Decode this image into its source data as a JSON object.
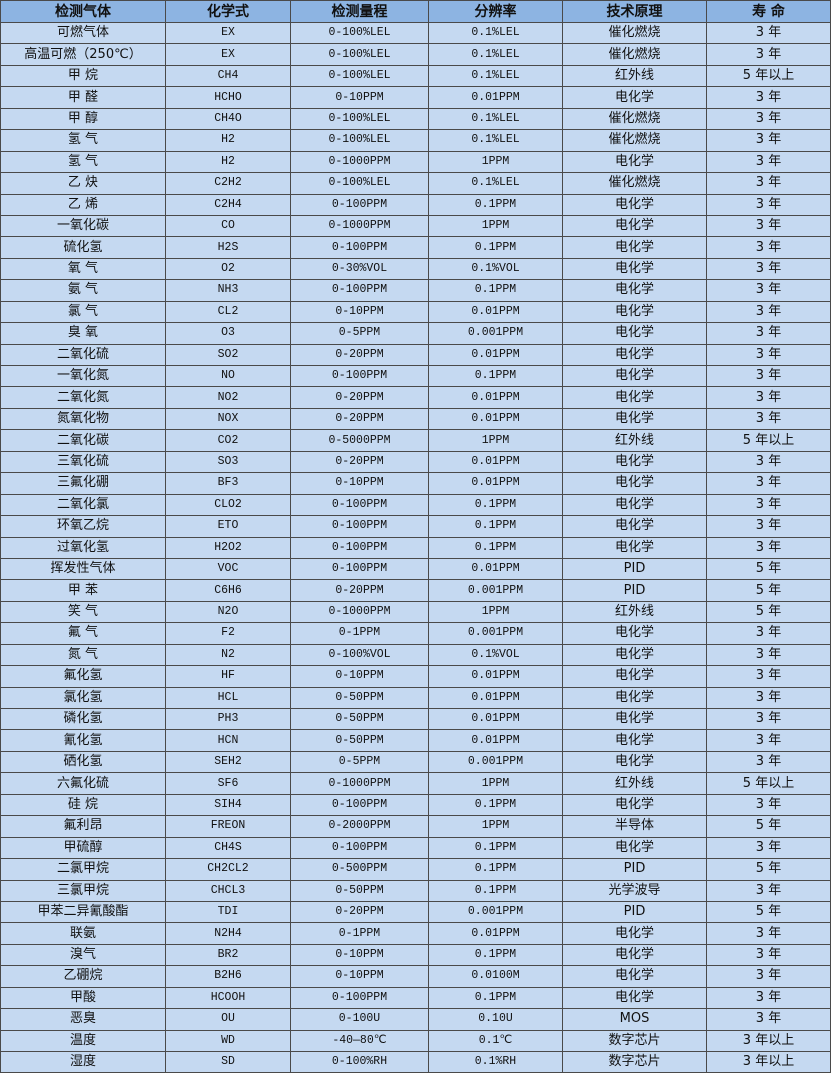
{
  "colors": {
    "header_bg": "#8DB4E2",
    "row_bg": "#C5D9F1",
    "border": "#4a4a4a"
  },
  "headers": [
    "检测气体",
    "化学式",
    "检测量程",
    "分辨率",
    "技术原理",
    "寿 命"
  ],
  "rows": [
    [
      "可燃气体",
      "EX",
      "0-100%LEL",
      "0.1%LEL",
      "催化燃烧",
      "3 年"
    ],
    [
      "高温可燃（250℃）",
      "EX",
      "0-100%LEL",
      "0.1%LEL",
      "催化燃烧",
      "3 年"
    ],
    [
      "甲 烷",
      "CH4",
      "0-100%LEL",
      "0.1%LEL",
      "红外线",
      "5 年以上"
    ],
    [
      "甲 醛",
      "HCHO",
      "0-10PPM",
      "0.01PPM",
      "电化学",
      "3 年"
    ],
    [
      "甲 醇",
      "CH4O",
      "0-100%LEL",
      "0.1%LEL",
      "催化燃烧",
      "3 年"
    ],
    [
      "氢 气",
      "H2",
      "0-100%LEL",
      "0.1%LEL",
      "催化燃烧",
      "3 年"
    ],
    [
      "氢 气",
      "H2",
      "0-1000PPM",
      "1PPM",
      "电化学",
      "3 年"
    ],
    [
      "乙 炔",
      "C2H2",
      "0-100%LEL",
      "0.1%LEL",
      "催化燃烧",
      "3 年"
    ],
    [
      "乙 烯",
      "C2H4",
      "0-100PPM",
      "0.1PPM",
      "电化学",
      "3 年"
    ],
    [
      "一氧化碳",
      "CO",
      "0-1000PPM",
      "1PPM",
      "电化学",
      "3 年"
    ],
    [
      "硫化氢",
      "H2S",
      "0-100PPM",
      "0.1PPM",
      "电化学",
      "3 年"
    ],
    [
      "氧 气",
      "O2",
      "0-30%VOL",
      "0.1%VOL",
      "电化学",
      "3 年"
    ],
    [
      "氨 气",
      "NH3",
      "0-100PPM",
      "0.1PPM",
      "电化学",
      "3 年"
    ],
    [
      "氯 气",
      "CL2",
      "0-10PPM",
      "0.01PPM",
      "电化学",
      "3 年"
    ],
    [
      "臭 氧",
      "O3",
      "0-5PPM",
      "0.001PPM",
      "电化学",
      "3 年"
    ],
    [
      "二氧化硫",
      "SO2",
      "0-20PPM",
      "0.01PPM",
      "电化学",
      "3 年"
    ],
    [
      "一氧化氮",
      "NO",
      "0-100PPM",
      "0.1PPM",
      "电化学",
      "3 年"
    ],
    [
      "二氧化氮",
      "NO2",
      "0-20PPM",
      "0.01PPM",
      "电化学",
      "3 年"
    ],
    [
      "氮氧化物",
      "NOX",
      "0-20PPM",
      "0.01PPM",
      "电化学",
      "3 年"
    ],
    [
      "二氧化碳",
      "CO2",
      "0-5000PPM",
      "1PPM",
      "红外线",
      "5 年以上"
    ],
    [
      "三氧化硫",
      "SO3",
      "0-20PPM",
      "0.01PPM",
      "电化学",
      "3 年"
    ],
    [
      "三氟化硼",
      "BF3",
      "0-10PPM",
      "0.01PPM",
      "电化学",
      "3 年"
    ],
    [
      "二氧化氯",
      "CLO2",
      "0-100PPM",
      "0.1PPM",
      "电化学",
      "3 年"
    ],
    [
      "环氧乙烷",
      "ETO",
      "0-100PPM",
      "0.1PPM",
      "电化学",
      "3 年"
    ],
    [
      "过氧化氢",
      "H2O2",
      "0-100PPM",
      "0.1PPM",
      "电化学",
      "3 年"
    ],
    [
      "挥发性气体",
      "VOC",
      "0-100PPM",
      "0.01PPM",
      "PID",
      "5 年"
    ],
    [
      "甲 苯",
      "C6H6",
      "0-20PPM",
      "0.001PPM",
      "PID",
      "5 年"
    ],
    [
      "笑 气",
      "N2O",
      "0-1000PPM",
      "1PPM",
      "红外线",
      "5 年"
    ],
    [
      "氟 气",
      "F2",
      "0-1PPM",
      "0.001PPM",
      "电化学",
      "3 年"
    ],
    [
      "氮 气",
      "N2",
      "0-100%VOL",
      "0.1%VOL",
      "电化学",
      "3 年"
    ],
    [
      "氟化氢",
      "HF",
      "0-10PPM",
      "0.01PPM",
      "电化学",
      "3 年"
    ],
    [
      "氯化氢",
      "HCL",
      "0-50PPM",
      "0.01PPM",
      "电化学",
      "3 年"
    ],
    [
      "磷化氢",
      "PH3",
      "0-50PPM",
      "0.01PPM",
      "电化学",
      "3 年"
    ],
    [
      "氰化氢",
      "HCN",
      "0-50PPM",
      "0.01PPM",
      "电化学",
      "3 年"
    ],
    [
      "硒化氢",
      "SEH2",
      "0-5PPM",
      "0.001PPM",
      "电化学",
      "3 年"
    ],
    [
      "六氟化硫",
      "SF6",
      "0-1000PPM",
      "1PPM",
      "红外线",
      "5 年以上"
    ],
    [
      "硅 烷",
      "SIH4",
      "0-100PPM",
      "0.1PPM",
      "电化学",
      "3 年"
    ],
    [
      "氟利昂",
      "FREON",
      "0-2000PPM",
      "1PPM",
      "半导体",
      "5 年"
    ],
    [
      "甲硫醇",
      "CH4S",
      "0-100PPM",
      "0.1PPM",
      "电化学",
      "3 年"
    ],
    [
      "二氯甲烷",
      "CH2CL2",
      "0-500PPM",
      "0.1PPM",
      "PID",
      "5 年"
    ],
    [
      "三氯甲烷",
      "CHCL3",
      "0-50PPM",
      "0.1PPM",
      "光学波导",
      "3 年"
    ],
    [
      "甲苯二异氰酸酯",
      "TDI",
      "0-20PPM",
      "0.001PPM",
      "PID",
      "5 年"
    ],
    [
      "联氨",
      "N2H4",
      "0-1PPM",
      "0.01PPM",
      "电化学",
      "3 年"
    ],
    [
      "溴气",
      "BR2",
      "0-10PPM",
      "0.1PPM",
      "电化学",
      "3 年"
    ],
    [
      "乙硼烷",
      "B2H6",
      "0-10PPM",
      "0.0100M",
      "电化学",
      "3 年"
    ],
    [
      "甲酸",
      "HCOOH",
      "0-100PPM",
      "0.1PPM",
      "电化学",
      "3 年"
    ],
    [
      "恶臭",
      "OU",
      "0-100U",
      "0.10U",
      "MOS",
      "3 年"
    ],
    [
      "温度",
      "WD",
      "-40—80℃",
      "0.1℃",
      "数字芯片",
      "3 年以上"
    ],
    [
      "湿度",
      "SD",
      "0-100%RH",
      "0.1%RH",
      "数字芯片",
      "3 年以上"
    ]
  ]
}
